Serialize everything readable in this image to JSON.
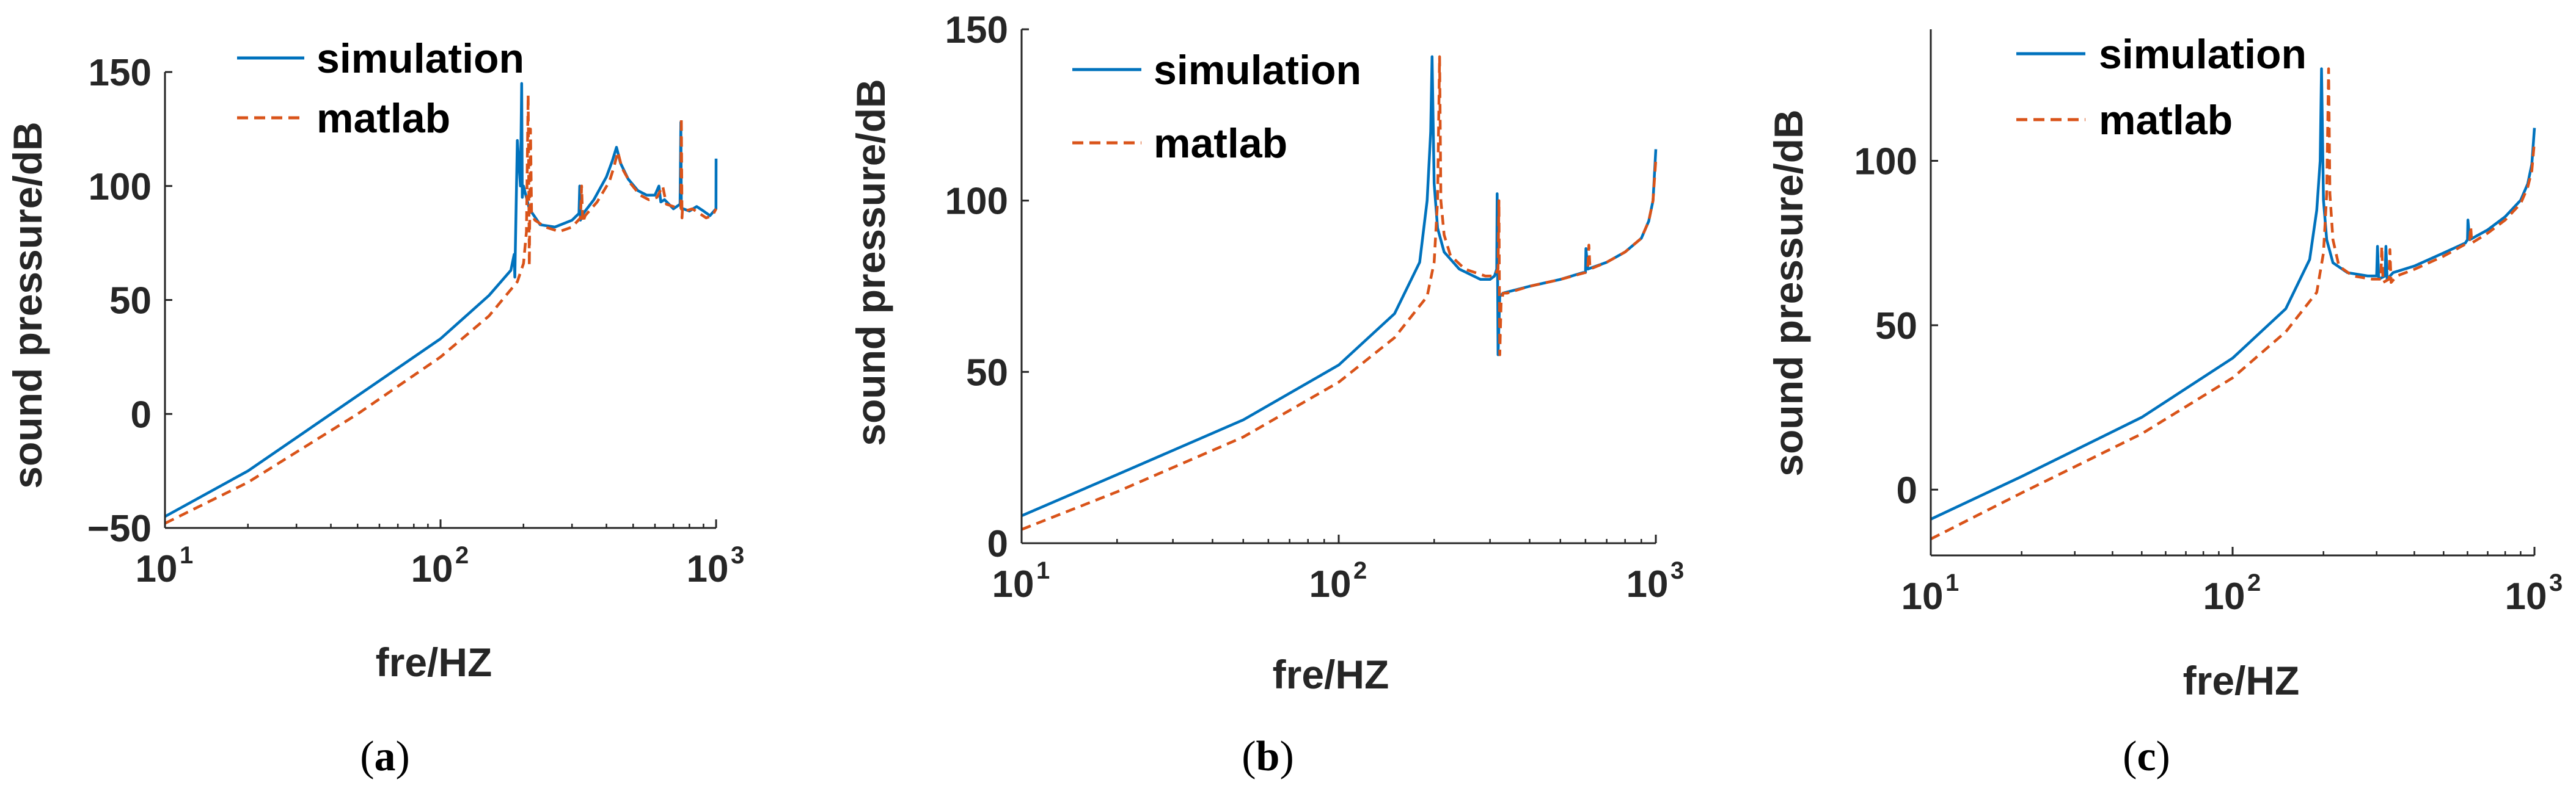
{
  "colors": {
    "simulation": "#0072BD",
    "matlab": "#D95319",
    "axis": "#262626"
  },
  "chart_data": [
    {
      "type": "line",
      "caption_label": "a",
      "xscale": "log",
      "xlabel": "fre/HZ",
      "ylabel": "sound pressure/dB",
      "xlim": [
        10,
        1000
      ],
      "ylim": [
        -50,
        150
      ],
      "yticks": [
        -50,
        0,
        50,
        100,
        150
      ],
      "ytick_labels": [
        "−50",
        "0",
        "50",
        "100",
        "150"
      ],
      "xticks": [
        10,
        100,
        1000
      ],
      "xtick_labels": [
        {
          "base": "10",
          "exp": "1"
        },
        {
          "base": "10",
          "exp": "2"
        },
        {
          "base": "10",
          "exp": "3"
        }
      ],
      "legend": {
        "position": "top-left",
        "entries": [
          "simulation",
          "matlab"
        ]
      },
      "series": [
        {
          "name": "simulation",
          "style": "solid",
          "x": [
            10,
            20,
            50,
            100,
            150,
            180,
            185,
            186,
            190,
            195,
            197,
            198,
            200,
            210,
            230,
            260,
            300,
            318,
            320,
            322,
            330,
            360,
            400,
            420,
            435,
            450,
            480,
            520,
            560,
            600,
            620,
            630,
            650,
            700,
            740,
            745,
            748,
            752,
            760,
            800,
            850,
            900,
            950,
            999,
            1000
          ],
          "values": [
            -45,
            -25,
            8,
            33,
            52,
            63,
            70,
            60,
            120,
            100,
            145,
            95,
            100,
            90,
            83,
            82,
            85,
            88,
            100,
            85,
            88,
            94,
            104,
            111,
            117,
            110,
            103,
            98,
            96,
            96,
            100,
            93,
            94,
            90,
            92,
            128,
            92,
            90,
            90,
            89,
            91,
            89,
            87,
            90,
            112
          ]
        },
        {
          "name": "matlab",
          "style": "dashed",
          "x": [
            10,
            20,
            50,
            100,
            150,
            190,
            200,
            205,
            208,
            210,
            212,
            214,
            220,
            240,
            270,
            300,
            322,
            325,
            328,
            335,
            370,
            410,
            425,
            440,
            455,
            490,
            530,
            570,
            610,
            640,
            660,
            700,
            745,
            748,
            752,
            755,
            770,
            820,
            870,
            920,
            970,
            1000
          ],
          "values": [
            -48,
            -30,
            0,
            25,
            43,
            58,
            66,
            80,
            140,
            65,
            125,
            88,
            85,
            82,
            80,
            82,
            86,
            100,
            84,
            87,
            93,
            102,
            108,
            115,
            108,
            101,
            96,
            94,
            95,
            100,
            92,
            91,
            90,
            130,
            86,
            90,
            89,
            90,
            88,
            86,
            87,
            90
          ]
        }
      ]
    },
    {
      "type": "line",
      "caption_label": "b",
      "xscale": "log",
      "xlabel": "fre/HZ",
      "ylabel": "sound pressure/dB",
      "xlim": [
        10,
        1000
      ],
      "ylim": [
        0,
        150
      ],
      "yticks": [
        0,
        50,
        100,
        150
      ],
      "ytick_labels": [
        "0",
        "50",
        "100",
        "150"
      ],
      "xticks": [
        10,
        100,
        1000
      ],
      "xtick_labels": [
        {
          "base": "10",
          "exp": "1"
        },
        {
          "base": "10",
          "exp": "2"
        },
        {
          "base": "10",
          "exp": "3"
        }
      ],
      "legend": {
        "position": "top-right",
        "entries": [
          "simulation",
          "matlab"
        ]
      },
      "series": [
        {
          "name": "simulation",
          "style": "solid",
          "x": [
            10,
            20,
            50,
            100,
            150,
            180,
            190,
            195,
            197,
            200,
            205,
            215,
            240,
            280,
            300,
            310,
            315,
            316,
            318,
            322,
            330,
            400,
            500,
            590,
            600,
            602,
            610,
            700,
            800,
            900,
            950,
            980,
            1000
          ],
          "values": [
            8,
            20,
            36,
            52,
            67,
            82,
            100,
            120,
            142,
            105,
            92,
            85,
            80,
            77,
            77,
            78,
            80,
            102,
            55,
            72,
            73,
            75,
            77,
            79,
            79,
            86,
            80,
            82,
            85,
            89,
            94,
            100,
            115
          ]
        },
        {
          "name": "matlab",
          "style": "dashed",
          "x": [
            10,
            20,
            50,
            100,
            150,
            190,
            200,
            205,
            208,
            210,
            215,
            225,
            250,
            290,
            310,
            318,
            320,
            322,
            325,
            330,
            340,
            400,
            500,
            600,
            610,
            615,
            620,
            700,
            800,
            900,
            950,
            980,
            1000
          ],
          "values": [
            4,
            15,
            31,
            47,
            60,
            72,
            82,
            100,
            142,
            100,
            90,
            84,
            80,
            78,
            78,
            80,
            100,
            55,
            70,
            73,
            73,
            75,
            77,
            79,
            80,
            87,
            80,
            82,
            85,
            89,
            94,
            100,
            112
          ]
        }
      ]
    },
    {
      "type": "line",
      "caption_label": "c",
      "xscale": "log",
      "xlabel": "fre/HZ",
      "ylabel": "sound pressure/dB",
      "xlim": [
        10,
        1000
      ],
      "ylim": [
        -20,
        140
      ],
      "yticks": [
        0,
        50,
        100
      ],
      "ytick_labels": [
        "0",
        "50",
        "100"
      ],
      "xticks": [
        10,
        100,
        1000
      ],
      "xtick_labels": [
        {
          "base": "10",
          "exp": "1"
        },
        {
          "base": "10",
          "exp": "2"
        },
        {
          "base": "10",
          "exp": "3"
        }
      ],
      "legend": {
        "position": "top-right",
        "entries": [
          "simulation",
          "matlab"
        ]
      },
      "series": [
        {
          "name": "simulation",
          "style": "solid",
          "x": [
            10,
            20,
            50,
            100,
            150,
            180,
            190,
            195,
            197,
            200,
            205,
            215,
            240,
            280,
            300,
            302,
            305,
            320,
            322,
            325,
            340,
            400,
            500,
            590,
            600,
            602,
            610,
            700,
            800,
            900,
            950,
            980,
            1000
          ],
          "values": [
            -9,
            4,
            22,
            40,
            55,
            70,
            85,
            100,
            128,
            88,
            76,
            69,
            66,
            65,
            65,
            74,
            64,
            65,
            74,
            64,
            66,
            68,
            72,
            75,
            76,
            82,
            76,
            79,
            83,
            88,
            93,
            99,
            110
          ]
        },
        {
          "name": "matlab",
          "style": "dashed",
          "x": [
            10,
            20,
            50,
            100,
            150,
            190,
            200,
            205,
            208,
            210,
            215,
            225,
            250,
            290,
            310,
            312,
            315,
            330,
            332,
            335,
            350,
            400,
            500,
            600,
            610,
            615,
            620,
            700,
            800,
            900,
            950,
            980,
            1000
          ],
          "values": [
            -15,
            -1,
            17,
            34,
            48,
            60,
            72,
            90,
            128,
            90,
            76,
            68,
            65,
            64,
            64,
            74,
            63,
            64,
            73,
            63,
            65,
            67,
            71,
            75,
            76,
            80,
            75,
            78,
            82,
            87,
            92,
            97,
            106
          ]
        }
      ]
    }
  ]
}
